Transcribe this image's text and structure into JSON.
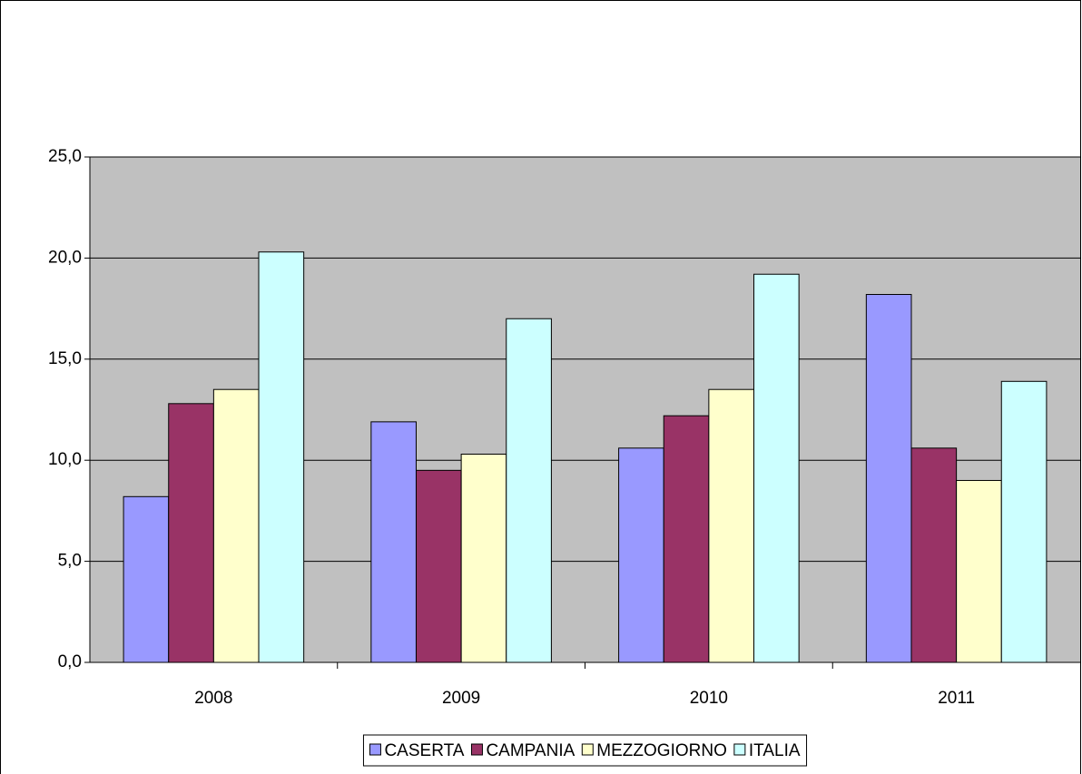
{
  "chart_data": {
    "type": "bar",
    "categories": [
      "2008",
      "2009",
      "2010",
      "2011"
    ],
    "series": [
      {
        "name": "CASERTA",
        "color": "#9999ff",
        "values": [
          8.2,
          11.9,
          10.6,
          18.2
        ]
      },
      {
        "name": "CAMPANIA",
        "color": "#993366",
        "values": [
          12.8,
          9.5,
          12.2,
          10.6
        ]
      },
      {
        "name": "MEZZOGIORNO",
        "color": "#ffffcc",
        "values": [
          13.5,
          10.3,
          13.5,
          9.0
        ]
      },
      {
        "name": "ITALIA",
        "color": "#ccffff",
        "values": [
          20.3,
          17.0,
          19.2,
          13.9
        ]
      }
    ],
    "ylim": [
      0,
      25
    ],
    "yticks": [
      {
        "value": 0,
        "label": "0,0"
      },
      {
        "value": 5,
        "label": "5,0"
      },
      {
        "value": 10,
        "label": "10,0"
      },
      {
        "value": 15,
        "label": "15,0"
      },
      {
        "value": 20,
        "label": "20,0"
      },
      {
        "value": 25,
        "label": "25,0"
      }
    ],
    "grid": true,
    "legend": "bottom",
    "background": "#c0c0c0"
  }
}
